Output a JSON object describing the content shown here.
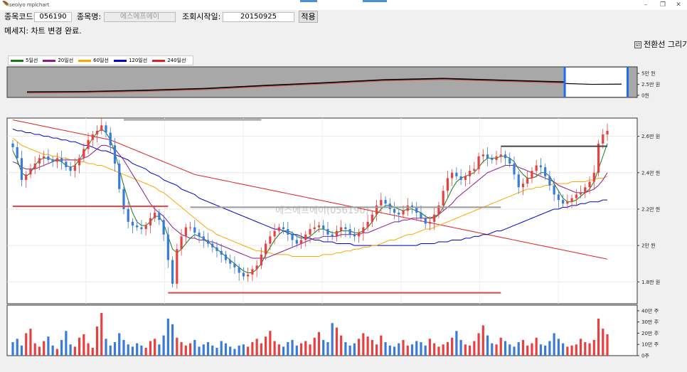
{
  "window": {
    "title": "seolyo mplchart",
    "minimize_glyph": "–",
    "restore_glyph": "❐",
    "close_glyph": "✕"
  },
  "form": {
    "code_label": "종목코드:",
    "code_value": "056190",
    "name_label": "종목명:",
    "name_value": "에스에프에이",
    "start_label": "조회시작일:",
    "start_value": "20150925",
    "apply_label": "적용",
    "message": "메세지: 차트 변경 완료.",
    "draw_lines_label": "전환선 그리기",
    "draw_lines_checked": "☑"
  },
  "legend": [
    {
      "label": "5일선",
      "color": "#1a7a1a"
    },
    {
      "label": "20일선",
      "color": "#8b1a8b"
    },
    {
      "label": "60일선",
      "color": "#ffa500"
    },
    {
      "label": "120일선",
      "color": "#0000cc"
    },
    {
      "label": "240일선",
      "color": "#e02020"
    }
  ],
  "colors": {
    "up": "#e84040",
    "down": "#3a7ad8",
    "selector": "#1e6ee8"
  },
  "chart_data": [
    {
      "type": "line",
      "name": "overview",
      "x": [
        0,
        0.1,
        0.2,
        0.3,
        0.4,
        0.5,
        0.6,
        0.7,
        0.8,
        0.9,
        1.0
      ],
      "values": [
        5000,
        6000,
        9000,
        13000,
        20000,
        26000,
        33000,
        36000,
        32000,
        28000,
        25000
      ],
      "ylim": [
        -5000,
        65000
      ],
      "yticks": [
        {
          "v": 50000,
          "label": "5만 원"
        },
        {
          "v": 25000,
          "label": "2.5만 원"
        },
        {
          "v": 0,
          "label": "0원"
        }
      ]
    },
    {
      "type": "candlestick",
      "name": "price",
      "watermark": "에스에프에이(056190)",
      "ylim": [
        16800,
        27000
      ],
      "yticks": [
        {
          "v": 26000,
          "label": "2.6만 원"
        },
        {
          "v": 24000,
          "label": "2.4만 원"
        },
        {
          "v": 22000,
          "label": "2.2만 원"
        },
        {
          "v": 20000,
          "label": "2만 원"
        },
        {
          "v": 18000,
          "label": "1.8만 원"
        }
      ],
      "close": [
        25400,
        24800,
        23600,
        23900,
        24200,
        24500,
        24800,
        24900,
        24700,
        24600,
        24800,
        24600,
        24300,
        24100,
        24400,
        24800,
        25300,
        25800,
        26100,
        26300,
        26600,
        26200,
        25500,
        24500,
        23100,
        22000,
        21300,
        21100,
        21000,
        20900,
        21100,
        21500,
        21800,
        21400,
        20600,
        19200,
        17900,
        19800,
        20500,
        21000,
        21000,
        20700,
        20500,
        20300,
        20100,
        19900,
        19700,
        19500,
        19200,
        19000,
        18800,
        18500,
        18300,
        18400,
        18700,
        18900,
        19500,
        20100,
        20500,
        20800,
        21000,
        20900,
        20600,
        20300,
        20100,
        20300,
        20600,
        20900,
        21000,
        21100,
        20900,
        20600,
        20500,
        20800,
        21000,
        20900,
        20600,
        20500,
        20700,
        21000,
        21300,
        21700,
        22200,
        22500,
        22300,
        22000,
        21800,
        21700,
        21900,
        22200,
        22100,
        21800,
        21500,
        21200,
        21300,
        21700,
        22200,
        23000,
        23700,
        24000,
        23800,
        23600,
        23800,
        24100,
        24200,
        24900,
        25000,
        24800,
        24700,
        24900,
        25000,
        24800,
        24500,
        23900,
        23200,
        23400,
        23700,
        24100,
        24400,
        24300,
        23800,
        23300,
        22800,
        22500,
        22300,
        22400,
        22600,
        22800,
        22900,
        23200,
        23500,
        24000,
        25600,
        26100,
        26300
      ],
      "ma5": [
        25200,
        24700,
        24000,
        23800,
        24000,
        24400,
        24700,
        24800,
        24800,
        24700,
        24700,
        24600,
        24400,
        24300,
        24400,
        24700,
        25100,
        25500,
        25900,
        26200,
        26400,
        26200,
        25800,
        25100,
        24200,
        23300,
        22500,
        21800,
        21300,
        21100,
        21100,
        21300,
        21600,
        21600,
        21200,
        20500,
        19800,
        19600,
        19800,
        20100,
        20400,
        20600,
        20500,
        20400,
        20200,
        20000,
        19800,
        19600,
        19400,
        19200,
        19000,
        18800,
        18600,
        18500,
        18500,
        18700,
        19000,
        19500,
        19900,
        20300,
        20600,
        20800,
        20800,
        20700,
        20500,
        20400,
        20400,
        20500,
        20700,
        20900,
        20900,
        20800,
        20700,
        20700,
        20800,
        20800,
        20800,
        20700,
        20700,
        20800,
        21000,
        21300,
        21700,
        22000,
        22200,
        22200,
        22100,
        22000,
        21900,
        22000,
        22000,
        21900,
        21800,
        21600,
        21500,
        21500,
        21700,
        22100,
        22600,
        23100,
        23500,
        23700,
        23800,
        23900,
        24000,
        24300,
        24600,
        24800,
        24800,
        24800,
        24900,
        24900,
        24800,
        24600,
        24200,
        23900,
        23700,
        23700,
        23800,
        24000,
        24000,
        23800,
        23400,
        23000,
        22600,
        22400,
        22400,
        22500,
        22700,
        22900,
        23100,
        23500,
        24200,
        24900,
        25600
      ],
      "ma20": [
        24600,
        24500,
        24300,
        24200,
        24200,
        24200,
        24300,
        24400,
        24500,
        24600,
        24700,
        24700,
        24700,
        24700,
        24700,
        24700,
        24800,
        24900,
        25100,
        25300,
        25500,
        25500,
        25400,
        25300,
        25000,
        24700,
        24300,
        23900,
        23500,
        23100,
        22700,
        22300,
        22000,
        21800,
        21600,
        21300,
        21000,
        20800,
        20600,
        20500,
        20400,
        20400,
        20300,
        20300,
        20200,
        20200,
        20100,
        20000,
        19900,
        19800,
        19700,
        19600,
        19500,
        19400,
        19300,
        19300,
        19300,
        19300,
        19400,
        19500,
        19600,
        19700,
        19800,
        19900,
        20000,
        20100,
        20200,
        20300,
        20400,
        20400,
        20500,
        20500,
        20500,
        20500,
        20600,
        20600,
        20600,
        20600,
        20600,
        20700,
        20700,
        20800,
        20900,
        21000,
        21100,
        21200,
        21300,
        21300,
        21400,
        21400,
        21500,
        21500,
        21500,
        21500,
        21500,
        21600,
        21700,
        21900,
        22100,
        22300,
        22600,
        22800,
        23000,
        23200,
        23400,
        23600,
        23800,
        24000,
        24100,
        24200,
        24300,
        24400,
        24400,
        24400,
        24300,
        24200,
        24100,
        24000,
        23900,
        23800,
        23700,
        23600,
        23500,
        23300,
        23200,
        23100,
        23000,
        22900,
        22900,
        22900,
        23000,
        23100,
        23300,
        23600,
        24000
      ],
      "ma60": [
        25900,
        25700,
        25500,
        25400,
        25300,
        25200,
        25100,
        25000,
        25000,
        24900,
        24900,
        24800,
        24800,
        24700,
        24700,
        24600,
        24600,
        24500,
        24500,
        24400,
        24400,
        24300,
        24200,
        24100,
        24000,
        23900,
        23800,
        23700,
        23600,
        23500,
        23400,
        23300,
        23200,
        23000,
        22900,
        22700,
        22500,
        22300,
        22100,
        21900,
        21700,
        21500,
        21300,
        21100,
        20900,
        20800,
        20600,
        20500,
        20400,
        20300,
        20200,
        20100,
        20000,
        19900,
        19800,
        19700,
        19700,
        19600,
        19600,
        19500,
        19500,
        19500,
        19500,
        19400,
        19400,
        19400,
        19400,
        19400,
        19400,
        19400,
        19500,
        19500,
        19500,
        19600,
        19600,
        19700,
        19700,
        19800,
        19800,
        19900,
        19900,
        20000,
        20000,
        20100,
        20200,
        20300,
        20300,
        20400,
        20500,
        20600,
        20600,
        20700,
        20800,
        20900,
        20900,
        21000,
        21100,
        21200,
        21300,
        21400,
        21500,
        21600,
        21700,
        21800,
        21900,
        22000,
        22100,
        22200,
        22300,
        22400,
        22500,
        22600,
        22700,
        22800,
        22900,
        23000,
        23100,
        23100,
        23200,
        23200,
        23300,
        23300,
        23400,
        23400,
        23400,
        23400,
        23500,
        23500,
        23500,
        23500,
        23600,
        23600,
        23700,
        23700,
        23800
      ],
      "ma120": [
        26400,
        26300,
        26300,
        26200,
        26200,
        26100,
        26100,
        26000,
        26000,
        25900,
        25900,
        25800,
        25800,
        25700,
        25700,
        25600,
        25500,
        25500,
        25400,
        25300,
        25200,
        25200,
        25100,
        25000,
        24900,
        24800,
        24700,
        24500,
        24400,
        24300,
        24200,
        24000,
        23900,
        23800,
        23600,
        23500,
        23400,
        23300,
        23100,
        23000,
        22900,
        22800,
        22600,
        22500,
        22400,
        22300,
        22200,
        22100,
        22000,
        21900,
        21800,
        21700,
        21600,
        21500,
        21400,
        21300,
        21200,
        21100,
        21000,
        20900,
        20900,
        20800,
        20700,
        20600,
        20600,
        20500,
        20400,
        20400,
        20300,
        20300,
        20200,
        20200,
        20200,
        20100,
        20100,
        20100,
        20100,
        20000,
        20000,
        20000,
        20000,
        20000,
        20000,
        20000,
        20000,
        20000,
        20000,
        20000,
        20000,
        20000,
        20000,
        20000,
        20100,
        20100,
        20100,
        20100,
        20200,
        20200,
        20200,
        20300,
        20300,
        20300,
        20400,
        20400,
        20500,
        20500,
        20600,
        20600,
        20700,
        20800,
        20800,
        20900,
        21000,
        21100,
        21200,
        21300,
        21400,
        21500,
        21600,
        21700,
        21800,
        21900,
        22000,
        22000,
        22100,
        22100,
        22200,
        22200,
        22300,
        22300,
        22400,
        22400,
        22400,
        22500,
        22500
      ],
      "ma240": [
        26900,
        26850,
        26800,
        26750,
        26700,
        26650,
        26600,
        26550,
        26500,
        26450,
        26400,
        26350,
        26300,
        26250,
        26200,
        26150,
        26100,
        26050,
        26000,
        25950,
        25900,
        25850,
        25800,
        25700,
        25600,
        25500,
        25400,
        25300,
        25200,
        25100,
        25000,
        24900,
        24800,
        24700,
        24600,
        24500,
        24400,
        24300,
        24200,
        24100,
        24000,
        23900,
        23850,
        23800,
        23750,
        23700,
        23650,
        23600,
        23550,
        23500,
        23450,
        23400,
        23350,
        23300,
        23250,
        23200,
        23150,
        23100,
        23050,
        23000,
        22950,
        22900,
        22850,
        22800,
        22750,
        22700,
        22650,
        22600,
        22550,
        22500,
        22450,
        22400,
        22350,
        22300,
        22250,
        22200,
        22150,
        22100,
        22050,
        22000,
        21950,
        21900,
        21850,
        21800,
        21750,
        21700,
        21650,
        21600,
        21550,
        21500,
        21450,
        21400,
        21350,
        21300,
        21250,
        21200,
        21150,
        21100,
        21050,
        21000,
        20950,
        20900,
        20850,
        20800,
        20750,
        20700,
        20650,
        20600,
        20550,
        20500,
        20450,
        20400,
        20350,
        20300,
        20250,
        20200,
        20150,
        20100,
        20050,
        20000,
        19950,
        19900,
        19850,
        19800,
        19750,
        19700,
        19650,
        19600,
        19550,
        19500,
        19450,
        19400,
        19350,
        19300,
        19250
      ],
      "hlines": [
        {
          "v": 26900,
          "x0": 25,
          "x1": 56,
          "color": "#9a9a9a"
        },
        {
          "v": 25450,
          "x0": 110,
          "x1": 134,
          "color": "#444444"
        },
        {
          "v": 22150,
          "x0": 0,
          "x1": 35,
          "color": "#e84040"
        },
        {
          "v": 22100,
          "x0": 40,
          "x1": 110,
          "color": "#9a9a9a"
        },
        {
          "v": 17400,
          "x0": 35,
          "x1": 110,
          "color": "#e84040"
        }
      ]
    },
    {
      "type": "bar",
      "name": "volume",
      "ylim": [
        0,
        450000
      ],
      "yticks": [
        {
          "v": 400000,
          "label": "40만 주"
        },
        {
          "v": 300000,
          "label": "30만 주"
        },
        {
          "v": 200000,
          "label": "20만 주"
        },
        {
          "v": 100000,
          "label": "10만 주"
        },
        {
          "v": 0,
          "label": "0주"
        }
      ],
      "values": [
        120000,
        150000,
        90000,
        200000,
        240000,
        110000,
        80000,
        130000,
        170000,
        90000,
        60000,
        140000,
        220000,
        100000,
        80000,
        160000,
        190000,
        110000,
        70000,
        260000,
        380000,
        150000,
        90000,
        120000,
        200000,
        140000,
        100000,
        80000,
        110000,
        90000,
        70000,
        130000,
        150000,
        100000,
        180000,
        330000,
        280000,
        160000,
        120000,
        90000,
        110000,
        140000,
        80000,
        100000,
        120000,
        90000,
        70000,
        130000,
        110000,
        80000,
        60000,
        90000,
        100000,
        80000,
        120000,
        150000,
        110000,
        170000,
        220000,
        130000,
        100000,
        80000,
        120000,
        140000,
        90000,
        110000,
        130000,
        100000,
        160000,
        210000,
        140000,
        120000,
        290000,
        250000,
        180000,
        120000,
        90000,
        110000,
        150000,
        200000,
        170000,
        140000,
        100000,
        180000,
        120000,
        90000,
        80000,
        110000,
        140000,
        90000,
        100000,
        130000,
        120000,
        90000,
        150000,
        110000,
        80000,
        100000,
        120000,
        160000,
        220000,
        140000,
        100000,
        90000,
        130000,
        200000,
        270000,
        180000,
        110000,
        100000,
        160000,
        130000,
        100000,
        80000,
        120000,
        140000,
        90000,
        110000,
        160000,
        100000,
        90000,
        130000,
        200000,
        150000,
        110000,
        80000,
        90000,
        100000,
        150000,
        120000,
        110000,
        140000,
        330000,
        240000,
        190000
      ]
    }
  ]
}
